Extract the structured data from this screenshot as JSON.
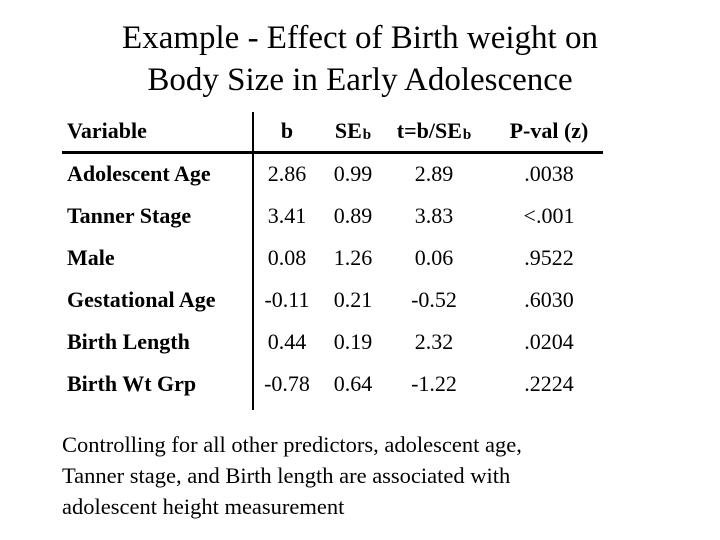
{
  "slide": {
    "title_lines": [
      "Example - Effect of Birth weight on",
      "Body Size in Early Adolescence"
    ],
    "table": {
      "headers": [
        {
          "main": "Variable",
          "sub": ""
        },
        {
          "main": "b",
          "sub": ""
        },
        {
          "main": "SE",
          "sub": "b"
        },
        {
          "main": "t=b/SE",
          "sub": "b"
        },
        {
          "main": "P-val (z)",
          "sub": ""
        }
      ],
      "rows": [
        {
          "variable": "Adolescent Age",
          "b": "2.86",
          "se": "0.99",
          "t": "2.89",
          "p": ".0038"
        },
        {
          "variable": "Tanner Stage",
          "b": "3.41",
          "se": "0.89",
          "t": "3.83",
          "p": "<.001"
        },
        {
          "variable": "Male",
          "b": "0.08",
          "se": "1.26",
          "t": "0.06",
          "p": ".9522"
        },
        {
          "variable": "Gestational Age",
          "b": "-0.11",
          "se": "0.21",
          "t": "-0.52",
          "p": ".6030"
        },
        {
          "variable": "Birth Length",
          "b": "0.44",
          "se": "0.19",
          "t": "2.32",
          "p": ".0204"
        },
        {
          "variable": "Birth Wt Grp",
          "b": "-0.78",
          "se": "0.64",
          "t": "-1.22",
          "p": ".2224"
        }
      ]
    },
    "note_lines": [
      "Controlling for all other predictors, adolescent age,",
      "Tanner stage, and Birth length are associated with",
      "adolescent height measurement"
    ],
    "colors": {
      "background": "#ffffff",
      "text": "#000000"
    }
  }
}
